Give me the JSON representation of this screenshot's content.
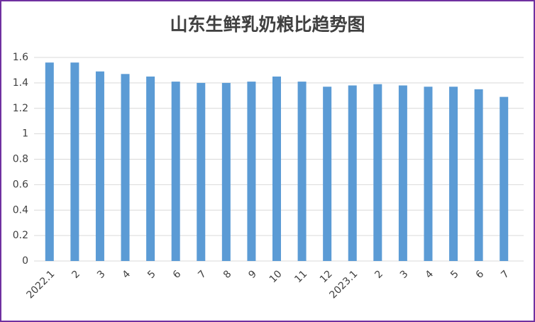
{
  "chart_data": {
    "type": "bar",
    "title": "山东生鲜乳奶粮比趋势图",
    "categories": [
      "2022.1",
      "2",
      "3",
      "4",
      "5",
      "6",
      "7",
      "8",
      "9",
      "10",
      "11",
      "12",
      "2023.1",
      "2",
      "3",
      "4",
      "5",
      "6",
      "7"
    ],
    "values": [
      1.56,
      1.56,
      1.49,
      1.47,
      1.45,
      1.41,
      1.4,
      1.4,
      1.41,
      1.45,
      1.41,
      1.37,
      1.38,
      1.39,
      1.38,
      1.37,
      1.37,
      1.35,
      1.29
    ],
    "color": "#5b9bd5",
    "ylim": [
      0,
      1.6
    ],
    "yticks": [
      0,
      0.2,
      0.4,
      0.6,
      0.8,
      1,
      1.2,
      1.4,
      1.6
    ],
    "grid": true
  }
}
